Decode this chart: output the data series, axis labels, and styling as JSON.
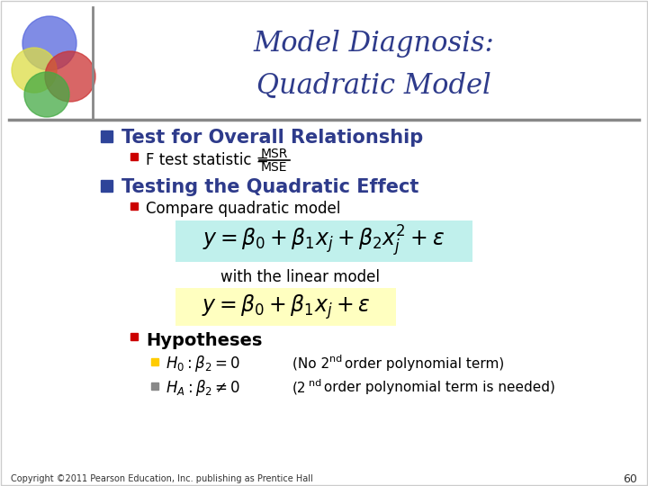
{
  "title_line1": "Model Diagnosis:",
  "title_line2": "Quadratic Model",
  "title_color": "#2E3B8B",
  "title_fontsize": 22,
  "bg_color": "#FFFFFF",
  "bullet1_text": "Test for Overall Relationship",
  "bullet1_color": "#2E3B8B",
  "bullet1_square_color": "#2E4499",
  "sub_bullet1_text": "F test statistic = ",
  "sub_bullet1_color": "#000000",
  "sub_bullet1_square_color": "#CC0000",
  "bullet2_text": "Testing the Quadratic Effect",
  "bullet2_color": "#2E3B8B",
  "bullet2_square_color": "#2E4499",
  "sub_bullet2_text": "Compare quadratic model",
  "sub_bullet2_color": "#000000",
  "sub_bullet2_square_color": "#CC0000",
  "eq1_bg": "#C0F0EC",
  "eq2_bg": "#FFFFC0",
  "with_linear_text": "with the linear model",
  "sub_bullet3_text": "Hypotheses",
  "sub_bullet3_color": "#000000",
  "sub_bullet3_square_color": "#CC0000",
  "h0_square_color": "#FFCC00",
  "ha_square_color": "#CCCCCC",
  "footer_text": "Copyright ©2011 Pearson Education, Inc. publishing as Prentice Hall",
  "page_number": "60"
}
